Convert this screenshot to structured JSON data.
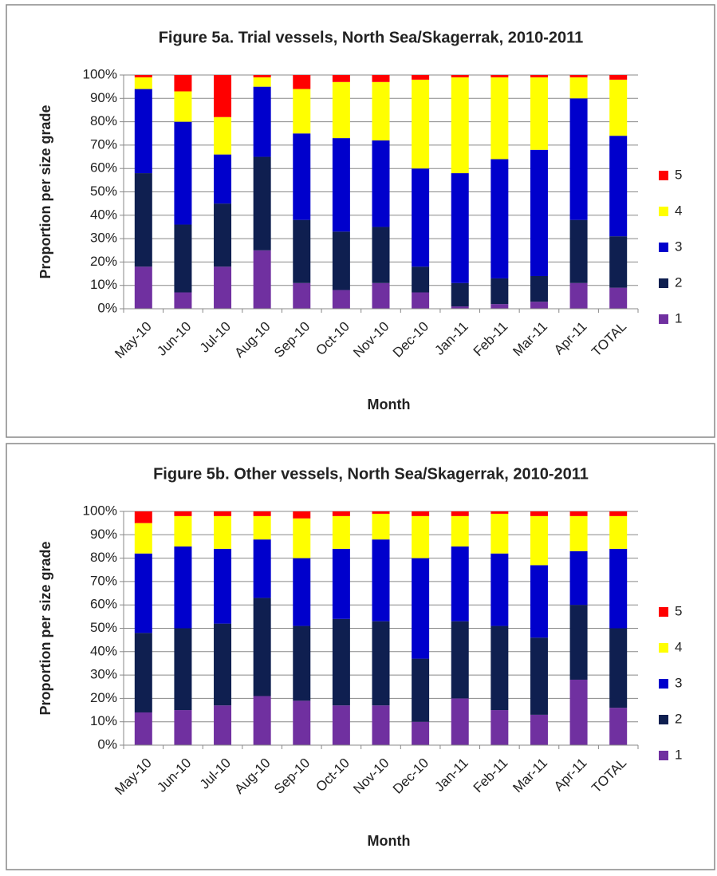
{
  "chart_data": [
    {
      "type": "stacked_bar",
      "title": "Figure 5a. Trial vessels, North Sea/Skagerrak, 2010-2011",
      "x_label": "Month",
      "y_label": "Proportion per size grade",
      "categories": [
        "May-10",
        "Jun-10",
        "Jul-10",
        "Aug-10",
        "Sep-10",
        "Oct-10",
        "Nov-10",
        "Dec-10",
        "Jan-11",
        "Feb-11",
        "Mar-11",
        "Apr-11",
        "TOTAL"
      ],
      "series": [
        {
          "name": "1",
          "color": "#7030a0",
          "values": [
            18,
            7,
            18,
            25,
            11,
            8,
            11,
            7,
            1,
            2,
            3,
            11,
            9
          ]
        },
        {
          "name": "2",
          "color": "#0f1f50",
          "values": [
            40,
            29,
            27,
            40,
            27,
            25,
            24,
            11,
            10,
            11,
            11,
            27,
            22
          ]
        },
        {
          "name": "3",
          "color": "#0000cc",
          "values": [
            36,
            44,
            21,
            30,
            37,
            40,
            37,
            42,
            47,
            51,
            54,
            52,
            43
          ]
        },
        {
          "name": "4",
          "color": "#ffff00",
          "values": [
            5,
            13,
            16,
            4,
            19,
            24,
            25,
            38,
            41,
            35,
            31,
            9,
            24
          ]
        },
        {
          "name": "5",
          "color": "#ff0000",
          "values": [
            1,
            7,
            18,
            1,
            6,
            3,
            3,
            2,
            1,
            1,
            1,
            1,
            2
          ]
        }
      ],
      "ylim": [
        0,
        100
      ],
      "yticks": [
        {
          "value": 0,
          "label": "0%"
        },
        {
          "value": 10,
          "label": "10%"
        },
        {
          "value": 20,
          "label": "20%"
        },
        {
          "value": 30,
          "label": "30%"
        },
        {
          "value": 40,
          "label": "40%"
        },
        {
          "value": 50,
          "label": "50%"
        },
        {
          "value": 60,
          "label": "60%"
        },
        {
          "value": 70,
          "label": "70%"
        },
        {
          "value": 80,
          "label": "80%"
        },
        {
          "value": 90,
          "label": "90%"
        },
        {
          "value": 100,
          "label": "100%"
        }
      ],
      "grid": true,
      "legend": "right"
    },
    {
      "type": "stacked_bar",
      "title": "Figure 5b. Other vessels, North Sea/Skagerrak, 2010-2011",
      "x_label": "Month",
      "y_label": "Proportion per size grade",
      "categories": [
        "May-10",
        "Jun-10",
        "Jul-10",
        "Aug-10",
        "Sep-10",
        "Oct-10",
        "Nov-10",
        "Dec-10",
        "Jan-11",
        "Feb-11",
        "Mar-11",
        "Apr-11",
        "TOTAL"
      ],
      "series": [
        {
          "name": "1",
          "color": "#7030a0",
          "values": [
            14,
            15,
            17,
            21,
            19,
            17,
            17,
            10,
            20,
            15,
            13,
            28,
            16
          ]
        },
        {
          "name": "2",
          "color": "#0f1f50",
          "values": [
            34,
            35,
            35,
            42,
            32,
            37,
            36,
            27,
            33,
            36,
            33,
            32,
            34
          ]
        },
        {
          "name": "3",
          "color": "#0000cc",
          "values": [
            34,
            35,
            32,
            25,
            29,
            30,
            35,
            43,
            32,
            31,
            31,
            23,
            34
          ]
        },
        {
          "name": "4",
          "color": "#ffff00",
          "values": [
            13,
            13,
            14,
            10,
            17,
            14,
            11,
            18,
            13,
            17,
            21,
            15,
            14
          ]
        },
        {
          "name": "5",
          "color": "#ff0000",
          "values": [
            5,
            2,
            2,
            2,
            3,
            2,
            1,
            2,
            2,
            1,
            2,
            2,
            2
          ]
        }
      ],
      "ylim": [
        0,
        100
      ],
      "yticks": [
        {
          "value": 0,
          "label": "0%"
        },
        {
          "value": 10,
          "label": "10%"
        },
        {
          "value": 20,
          "label": "20%"
        },
        {
          "value": 30,
          "label": "30%"
        },
        {
          "value": 40,
          "label": "40%"
        },
        {
          "value": 50,
          "label": "50%"
        },
        {
          "value": 60,
          "label": "60%"
        },
        {
          "value": 70,
          "label": "70%"
        },
        {
          "value": 80,
          "label": "80%"
        },
        {
          "value": 90,
          "label": "90%"
        },
        {
          "value": 100,
          "label": "100%"
        }
      ],
      "grid": true,
      "legend": "right"
    }
  ]
}
